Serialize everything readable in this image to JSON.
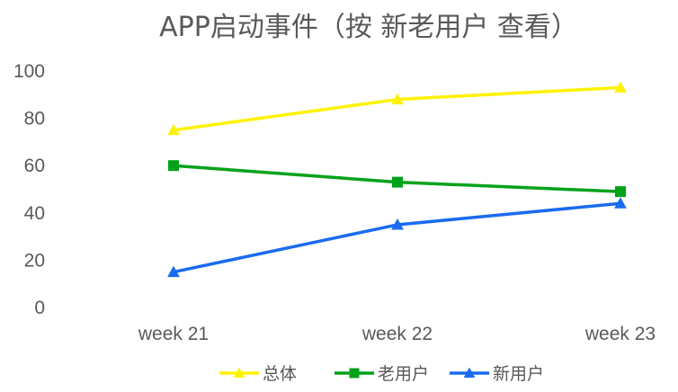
{
  "chart_data": {
    "type": "line",
    "title": "APP启动事件（按 新老用户 查看）",
    "xlabel": "",
    "ylabel": "",
    "categories": [
      "week 21",
      "week 22",
      "week 23"
    ],
    "ylim": [
      0,
      100
    ],
    "yticks": [
      0,
      20,
      40,
      60,
      80,
      100
    ],
    "grid": false,
    "legend": "bottom",
    "series": [
      {
        "name": "总体",
        "values": [
          75,
          88,
          93
        ],
        "color": "#FFF200",
        "marker": "triangle"
      },
      {
        "name": "老用户",
        "values": [
          60,
          53,
          49
        ],
        "color": "#00A21A",
        "marker": "square"
      },
      {
        "name": "新用户",
        "values": [
          15,
          35,
          44
        ],
        "color": "#1A6BF0",
        "marker": "triangle"
      }
    ]
  }
}
